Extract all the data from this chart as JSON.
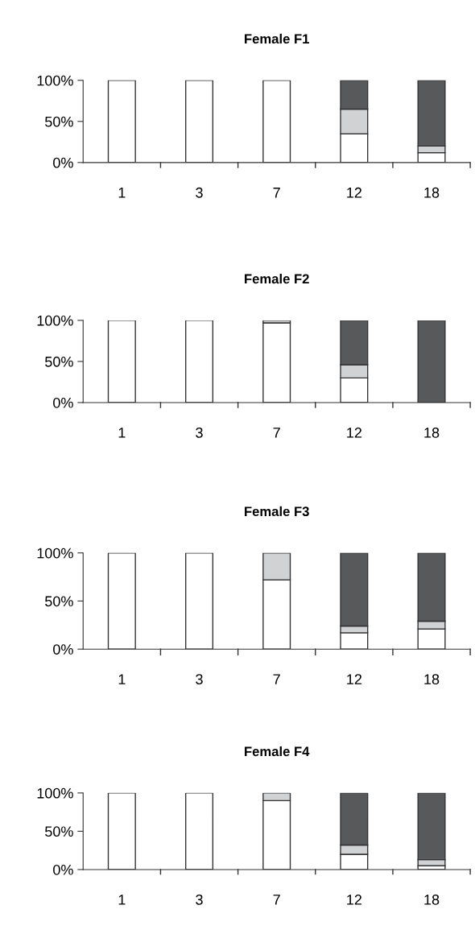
{
  "chart_data": [
    {
      "type": "bar",
      "title": "Female F1",
      "categories": [
        "1",
        "3",
        "7",
        "12",
        "18"
      ],
      "stacked": true,
      "ylim": [
        0,
        100
      ],
      "yticks": [
        {
          "value": 0,
          "label": "0%"
        },
        {
          "value": 50,
          "label": "50%"
        },
        {
          "value": 100,
          "label": "100%"
        }
      ],
      "grid": false,
      "legend": false,
      "series": [
        {
          "color": "#ffffff",
          "values": [
            100,
            100,
            100,
            35,
            12
          ]
        },
        {
          "color": "#d1d2d4",
          "values": [
            0,
            0,
            0,
            30,
            8
          ]
        },
        {
          "color": "#58595b",
          "values": [
            0,
            0,
            0,
            35,
            80
          ]
        }
      ]
    },
    {
      "type": "bar",
      "title": "Female F2",
      "categories": [
        "1",
        "3",
        "7",
        "12",
        "18"
      ],
      "stacked": true,
      "ylim": [
        0,
        100
      ],
      "yticks": [
        {
          "value": 0,
          "label": "0%"
        },
        {
          "value": 50,
          "label": "50%"
        },
        {
          "value": 100,
          "label": "100%"
        }
      ],
      "grid": false,
      "legend": false,
      "series": [
        {
          "color": "#ffffff",
          "values": [
            100,
            100,
            97,
            30,
            0
          ]
        },
        {
          "color": "#d1d2d4",
          "values": [
            0,
            0,
            3,
            16,
            0
          ]
        },
        {
          "color": "#58595b",
          "values": [
            0,
            0,
            0,
            54,
            100
          ]
        }
      ]
    },
    {
      "type": "bar",
      "title": "Female F3",
      "categories": [
        "1",
        "3",
        "7",
        "12",
        "18"
      ],
      "stacked": true,
      "ylim": [
        0,
        100
      ],
      "yticks": [
        {
          "value": 0,
          "label": "0%"
        },
        {
          "value": 50,
          "label": "50%"
        },
        {
          "value": 100,
          "label": "100%"
        }
      ],
      "grid": false,
      "legend": false,
      "series": [
        {
          "color": "#ffffff",
          "values": [
            100,
            100,
            72,
            17,
            21
          ]
        },
        {
          "color": "#d1d2d4",
          "values": [
            0,
            0,
            28,
            7,
            8
          ]
        },
        {
          "color": "#58595b",
          "values": [
            0,
            0,
            0,
            76,
            71
          ]
        }
      ]
    },
    {
      "type": "bar",
      "title": "Female F4",
      "categories": [
        "1",
        "3",
        "7",
        "12",
        "18"
      ],
      "stacked": true,
      "ylim": [
        0,
        100
      ],
      "yticks": [
        {
          "value": 0,
          "label": "0%"
        },
        {
          "value": 50,
          "label": "50%"
        },
        {
          "value": 100,
          "label": "100%"
        }
      ],
      "grid": false,
      "legend": false,
      "series": [
        {
          "color": "#ffffff",
          "values": [
            100,
            100,
            90,
            20,
            5
          ]
        },
        {
          "color": "#d1d2d4",
          "values": [
            0,
            0,
            10,
            12,
            8
          ]
        },
        {
          "color": "#58595b",
          "values": [
            0,
            0,
            0,
            68,
            87
          ]
        }
      ]
    }
  ]
}
